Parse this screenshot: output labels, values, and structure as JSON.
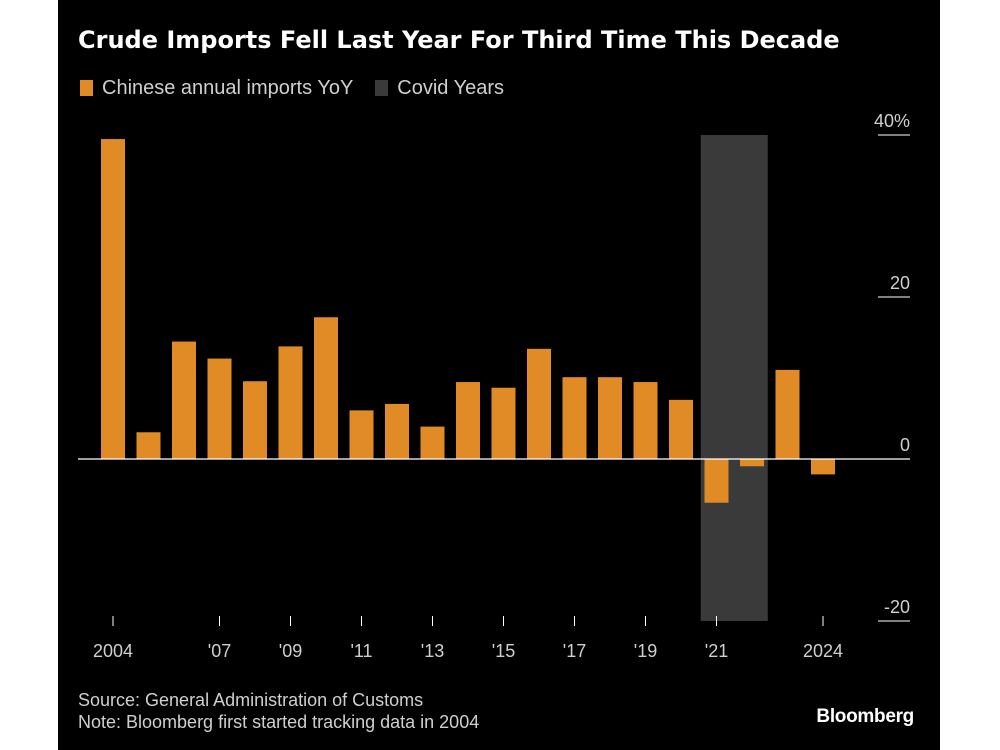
{
  "title": "Crude Imports Fell Last Year For Third Time This Decade",
  "legend": [
    {
      "label": "Chinese annual imports YoY",
      "color": "#e08b25"
    },
    {
      "label": "Covid Years",
      "color": "#3a3a3a"
    }
  ],
  "footer": {
    "source": "Source: General Administration of Customs",
    "note": "Note: Bloomberg first started tracking data in 2004"
  },
  "logo": "Bloomberg",
  "chart_data": {
    "type": "bar",
    "categories": [
      "2004",
      "2005",
      "2006",
      "2007",
      "2008",
      "2009",
      "2010",
      "2011",
      "2012",
      "2013",
      "2014",
      "2015",
      "2016",
      "2017",
      "2018",
      "2019",
      "2020",
      "2021",
      "2022",
      "2023",
      "2024"
    ],
    "values": [
      39.5,
      3.3,
      14.5,
      12.4,
      9.6,
      13.9,
      17.5,
      6.0,
      6.8,
      4.0,
      9.5,
      8.8,
      13.6,
      10.1,
      10.1,
      9.5,
      7.3,
      -5.4,
      -0.9,
      11.0,
      -1.9
    ],
    "x_tick_labels": [
      {
        "x": "2004",
        "label": "2004"
      },
      {
        "x": "2007",
        "label": "'07"
      },
      {
        "x": "2009",
        "label": "'09"
      },
      {
        "x": "2011",
        "label": "'11"
      },
      {
        "x": "2013",
        "label": "'13"
      },
      {
        "x": "2015",
        "label": "'15"
      },
      {
        "x": "2017",
        "label": "'17"
      },
      {
        "x": "2019",
        "label": "'19"
      },
      {
        "x": "2021",
        "label": "'21"
      },
      {
        "x": "2024",
        "label": "2024"
      }
    ],
    "y_ticks": [
      {
        "value": 40,
        "label": "40%"
      },
      {
        "value": 20,
        "label": "20"
      },
      {
        "value": 0,
        "label": "0"
      },
      {
        "value": -20,
        "label": "-20"
      }
    ],
    "ylim": [
      -20,
      40
    ],
    "highlight": {
      "from": "2021",
      "to": "2022",
      "label": "Covid Years",
      "color": "#3a3a3a"
    },
    "bar_color": "#e08b25",
    "y_axis_position": "right",
    "grid": false
  }
}
